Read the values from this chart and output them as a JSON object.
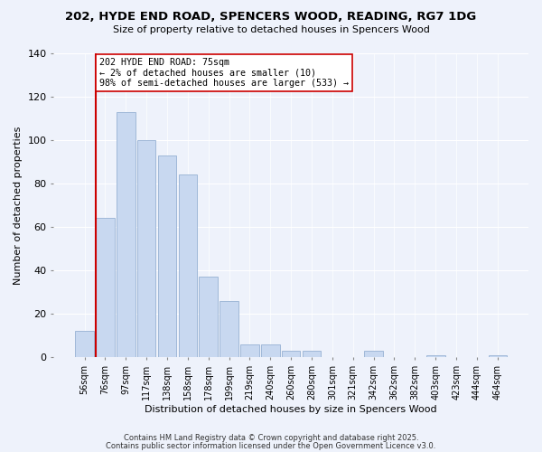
{
  "title_line1": "202, HYDE END ROAD, SPENCERS WOOD, READING, RG7 1DG",
  "title_line2": "Size of property relative to detached houses in Spencers Wood",
  "xlabel": "Distribution of detached houses by size in Spencers Wood",
  "ylabel": "Number of detached properties",
  "bar_labels": [
    "56sqm",
    "76sqm",
    "97sqm",
    "117sqm",
    "138sqm",
    "158sqm",
    "178sqm",
    "199sqm",
    "219sqm",
    "240sqm",
    "260sqm",
    "280sqm",
    "301sqm",
    "321sqm",
    "342sqm",
    "362sqm",
    "382sqm",
    "403sqm",
    "423sqm",
    "444sqm",
    "464sqm"
  ],
  "bar_values": [
    12,
    64,
    113,
    100,
    93,
    84,
    37,
    26,
    6,
    6,
    3,
    3,
    0,
    0,
    3,
    0,
    0,
    1,
    0,
    0,
    1
  ],
  "bar_color": "#c8d8f0",
  "bar_edge_color": "#a0b8d8",
  "vline_color": "#cc0000",
  "annotation_title": "202 HYDE END ROAD: 75sqm",
  "annotation_line1": "← 2% of detached houses are smaller (10)",
  "annotation_line2": "98% of semi-detached houses are larger (533) →",
  "annotation_box_color": "#ffffff",
  "annotation_box_edge": "#cc0000",
  "ylim": [
    0,
    140
  ],
  "yticks": [
    0,
    20,
    40,
    60,
    80,
    100,
    120,
    140
  ],
  "footnote1": "Contains HM Land Registry data © Crown copyright and database right 2025.",
  "footnote2": "Contains public sector information licensed under the Open Government Licence v3.0.",
  "background_color": "#eef2fb"
}
